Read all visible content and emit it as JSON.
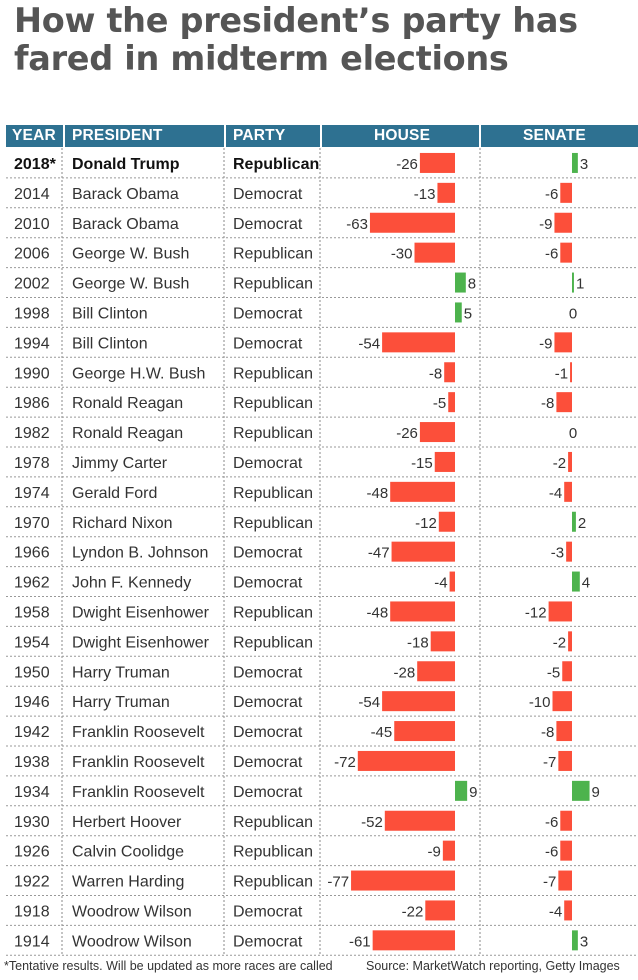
{
  "title": "How the president’s party has fared in midterm elections",
  "header": {
    "year": "YEAR",
    "president": "PRESIDENT",
    "party": "PARTY",
    "house": "HOUSE",
    "senate": "SENATE"
  },
  "footnote": "*Tentative results. Will be updated as more races are called",
  "source": "Source: MarketWatch reporting, Getty Images",
  "colors": {
    "header_bg": "#2e7191",
    "loss": "#fc4f3a",
    "gain": "#4db34d"
  },
  "chart_data": {
    "type": "bar",
    "title": "How the president’s party has fared in midterm elections",
    "series": [
      {
        "name": "House",
        "values": [
          -26,
          -13,
          -63,
          -30,
          8,
          5,
          -54,
          -8,
          -5,
          -26,
          -15,
          -48,
          -12,
          -47,
          -4,
          -48,
          -18,
          -28,
          -54,
          -45,
          -72,
          9,
          -52,
          -9,
          -77,
          -22,
          -61
        ]
      },
      {
        "name": "Senate",
        "values": [
          3,
          -6,
          -9,
          -6,
          1,
          0,
          -9,
          -1,
          -8,
          0,
          -2,
          -4,
          2,
          -3,
          4,
          -12,
          -2,
          -5,
          -10,
          -8,
          -7,
          9,
          -6,
          -6,
          -7,
          -4,
          3
        ]
      }
    ],
    "rows": [
      {
        "year": "2018*",
        "president": "Donald Trump",
        "party": "Republican",
        "house": -26,
        "senate": 3,
        "bold": true
      },
      {
        "year": "2014",
        "president": "Barack Obama",
        "party": "Democrat",
        "house": -13,
        "senate": -6
      },
      {
        "year": "2010",
        "president": "Barack Obama",
        "party": "Democrat",
        "house": -63,
        "senate": -9
      },
      {
        "year": "2006",
        "president": "George W. Bush",
        "party": "Republican",
        "house": -30,
        "senate": -6
      },
      {
        "year": "2002",
        "president": "George W. Bush",
        "party": "Republican",
        "house": 8,
        "senate": 1
      },
      {
        "year": "1998",
        "president": "Bill Clinton",
        "party": "Democrat",
        "house": 5,
        "senate": 0
      },
      {
        "year": "1994",
        "president": "Bill Clinton",
        "party": "Democrat",
        "house": -54,
        "senate": -9
      },
      {
        "year": "1990",
        "president": "George H.W. Bush",
        "party": "Republican",
        "house": -8,
        "senate": -1
      },
      {
        "year": "1986",
        "president": "Ronald Reagan",
        "party": "Republican",
        "house": -5,
        "senate": -8
      },
      {
        "year": "1982",
        "president": "Ronald Reagan",
        "party": "Republican",
        "house": -26,
        "senate": 0
      },
      {
        "year": "1978",
        "president": "Jimmy Carter",
        "party": "Democrat",
        "house": -15,
        "senate": -2
      },
      {
        "year": "1974",
        "president": "Gerald Ford",
        "party": "Republican",
        "house": -48,
        "senate": -4
      },
      {
        "year": "1970",
        "president": "Richard Nixon",
        "party": "Republican",
        "house": -12,
        "senate": 2
      },
      {
        "year": "1966",
        "president": "Lyndon B. Johnson",
        "party": "Democrat",
        "house": -47,
        "senate": -3
      },
      {
        "year": "1962",
        "president": "John F. Kennedy",
        "party": "Democrat",
        "house": -4,
        "senate": 4
      },
      {
        "year": "1958",
        "president": "Dwight Eisenhower",
        "party": "Republican",
        "house": -48,
        "senate": -12
      },
      {
        "year": "1954",
        "president": "Dwight Eisenhower",
        "party": "Republican",
        "house": -18,
        "senate": -2
      },
      {
        "year": "1950",
        "president": "Harry Truman",
        "party": "Democrat",
        "house": -28,
        "senate": -5
      },
      {
        "year": "1946",
        "president": "Harry Truman",
        "party": "Democrat",
        "house": -54,
        "senate": -10
      },
      {
        "year": "1942",
        "president": "Franklin Roosevelt",
        "party": "Democrat",
        "house": -45,
        "senate": -8
      },
      {
        "year": "1938",
        "president": "Franklin Roosevelt",
        "party": "Democrat",
        "house": -72,
        "senate": -7
      },
      {
        "year": "1934",
        "president": "Franklin Roosevelt",
        "party": "Democrat",
        "house": 9,
        "senate": 9
      },
      {
        "year": "1930",
        "president": "Herbert Hoover",
        "party": "Republican",
        "house": -52,
        "senate": -6
      },
      {
        "year": "1926",
        "president": "Calvin Coolidge",
        "party": "Republican",
        "house": -9,
        "senate": -6
      },
      {
        "year": "1922",
        "president": "Warren Harding",
        "party": "Republican",
        "house": -77,
        "senate": -7
      },
      {
        "year": "1918",
        "president": "Woodrow Wilson",
        "party": "Democrat",
        "house": -22,
        "senate": -4
      },
      {
        "year": "1914",
        "president": "Woodrow Wilson",
        "party": "Democrat",
        "house": -61,
        "senate": 3
      }
    ]
  }
}
